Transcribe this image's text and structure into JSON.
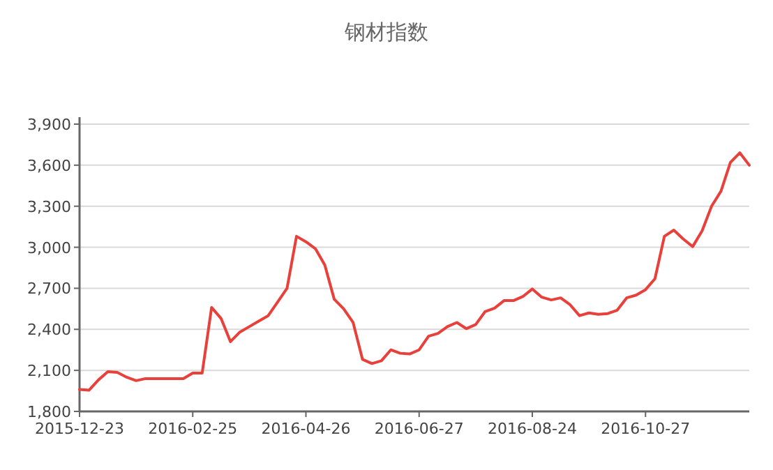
{
  "chart_data": {
    "type": "line",
    "title": "钢材指数",
    "categories": [
      "2015-12-23",
      null,
      null,
      null,
      null,
      null,
      null,
      null,
      null,
      null,
      null,
      null,
      "2016-02-25",
      null,
      null,
      null,
      null,
      null,
      null,
      null,
      null,
      null,
      null,
      null,
      "2016-04-26",
      null,
      null,
      null,
      null,
      null,
      null,
      null,
      null,
      null,
      null,
      null,
      "2016-06-27",
      null,
      null,
      null,
      null,
      null,
      null,
      null,
      null,
      null,
      null,
      null,
      "2016-08-24",
      null,
      null,
      null,
      null,
      null,
      null,
      null,
      null,
      null,
      null,
      null,
      "2016-10-27",
      null,
      null,
      null,
      null,
      null,
      null,
      null,
      null,
      null,
      null,
      null
    ],
    "values": [
      1960,
      1955,
      2030,
      2090,
      2085,
      2050,
      2025,
      2040,
      2040,
      2040,
      2040,
      2040,
      2080,
      2080,
      2560,
      2480,
      2310,
      2380,
      2420,
      2460,
      2500,
      2600,
      2700,
      3080,
      3040,
      2990,
      2870,
      2620,
      2550,
      2450,
      2180,
      2150,
      2170,
      2250,
      2225,
      2220,
      2250,
      2350,
      2370,
      2420,
      2450,
      2405,
      2435,
      2530,
      2555,
      2610,
      2610,
      2640,
      2695,
      2635,
      2615,
      2630,
      2580,
      2500,
      2520,
      2510,
      2515,
      2540,
      2630,
      2650,
      2690,
      2770,
      3080,
      3125,
      3060,
      3005,
      3120,
      3300,
      3410,
      3620,
      3690,
      3600
    ],
    "color": "#e8403a",
    "ylim": [
      1800,
      3900
    ],
    "yticks": [
      {
        "value": 1800,
        "label": "1,800"
      },
      {
        "value": 2100,
        "label": "2,100"
      },
      {
        "value": 2400,
        "label": "2,400"
      },
      {
        "value": 2700,
        "label": "2,700"
      },
      {
        "value": 3000,
        "label": "3,000"
      },
      {
        "value": 3300,
        "label": "3,300"
      },
      {
        "value": 3600,
        "label": "3,600"
      },
      {
        "value": 3900,
        "label": "3,900"
      }
    ],
    "grid": "y"
  }
}
